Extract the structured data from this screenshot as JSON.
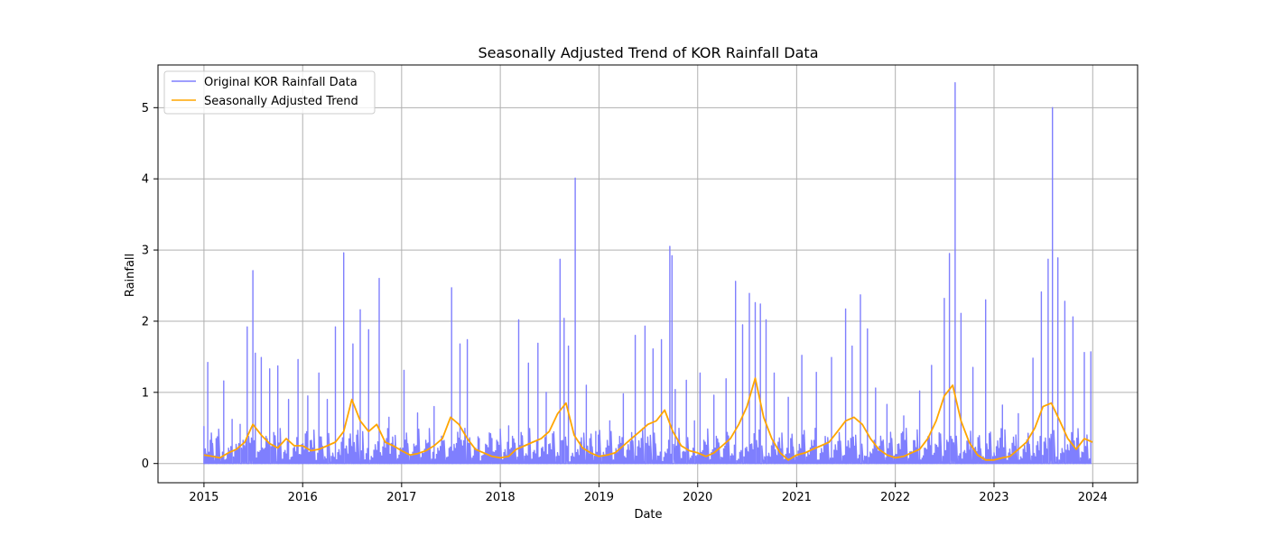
{
  "chart_data": {
    "type": "line",
    "title": "Seasonally Adjusted Trend of KOR Rainfall Data",
    "xlabel": "Date",
    "ylabel": "Rainfall",
    "xlim": [
      "2014-07-15",
      "2024-06-15"
    ],
    "ylim": [
      -0.27,
      5.6
    ],
    "grid": true,
    "legend_position": "top-left",
    "x_ticks": [
      "2015",
      "2016",
      "2017",
      "2018",
      "2019",
      "2020",
      "2021",
      "2022",
      "2023",
      "2024"
    ],
    "y_ticks": [
      0,
      1,
      2,
      3,
      4,
      5
    ],
    "colors": {
      "original": "#7f7ffe",
      "trend": "#ffa500",
      "grid": "#b0b0b0"
    },
    "series": [
      {
        "name": "Original KOR Rainfall Data",
        "x": [
          "2015-01-01",
          "2015-01-15",
          "2015-02-15",
          "2015-03-15",
          "2015-04-15",
          "2015-05-15",
          "2015-06-10",
          "2015-07-01",
          "2015-07-10",
          "2015-08-01",
          "2015-09-01",
          "2015-10-01",
          "2015-11-10",
          "2015-12-15",
          "2016-01-20",
          "2016-03-01",
          "2016-04-01",
          "2016-05-01",
          "2016-06-01",
          "2016-07-05",
          "2016-08-01",
          "2016-09-01",
          "2016-10-10",
          "2016-11-15",
          "2017-01-10",
          "2017-03-01",
          "2017-05-01",
          "2017-07-05",
          "2017-08-05",
          "2017-09-01",
          "2017-10-15",
          "2017-12-01",
          "2018-02-01",
          "2018-03-10",
          "2018-04-15",
          "2018-05-20",
          "2018-06-20",
          "2018-08-10",
          "2018-08-25",
          "2018-09-10",
          "2018-10-05",
          "2018-11-15",
          "2018-12-20",
          "2019-02-10",
          "2019-04-01",
          "2019-05-15",
          "2019-06-20",
          "2019-07-20",
          "2019-08-20",
          "2019-09-20",
          "2019-09-28",
          "2019-10-10",
          "2019-11-20",
          "2019-12-20",
          "2020-01-10",
          "2020-03-01",
          "2020-04-15",
          "2020-05-20",
          "2020-06-15",
          "2020-07-10",
          "2020-08-01",
          "2020-08-20",
          "2020-09-10",
          "2020-10-10",
          "2020-12-01",
          "2021-01-20",
          "2021-03-15",
          "2021-05-10",
          "2021-07-01",
          "2021-07-25",
          "2021-08-25",
          "2021-09-20",
          "2021-10-20",
          "2021-12-01",
          "2022-02-01",
          "2022-04-01",
          "2022-05-15",
          "2022-07-01",
          "2022-07-20",
          "2022-08-10",
          "2022-09-01",
          "2022-10-15",
          "2022-12-01",
          "2023-02-01",
          "2023-04-01",
          "2023-05-25",
          "2023-06-25",
          "2023-07-20",
          "2023-08-05",
          "2023-08-25",
          "2023-09-20",
          "2023-10-20",
          "2023-12-01",
          "2023-12-25"
        ],
        "values": [
          0.52,
          1.42,
          0.35,
          1.16,
          0.62,
          0.55,
          1.92,
          2.71,
          1.55,
          1.49,
          1.33,
          1.37,
          0.9,
          1.46,
          0.95,
          1.27,
          0.9,
          1.92,
          2.96,
          1.68,
          2.16,
          1.88,
          2.6,
          0.65,
          1.31,
          0.71,
          0.8,
          2.47,
          1.68,
          1.74,
          0.35,
          0.35,
          0.53,
          2.02,
          1.41,
          1.69,
          1.0,
          2.87,
          2.04,
          1.65,
          4.01,
          1.1,
          0.45,
          0.6,
          0.98,
          1.8,
          1.93,
          1.61,
          1.74,
          3.05,
          2.92,
          1.04,
          1.17,
          0.6,
          1.27,
          0.96,
          1.19,
          2.56,
          1.95,
          2.39,
          2.26,
          2.24,
          2.02,
          1.27,
          0.93,
          1.52,
          1.28,
          1.49,
          2.17,
          1.65,
          2.37,
          1.89,
          1.06,
          0.83,
          0.67,
          1.02,
          1.38,
          2.32,
          2.95,
          5.35,
          2.11,
          1.35,
          2.3,
          0.82,
          0.7,
          1.48,
          2.41,
          2.87,
          5.0,
          2.89,
          2.28,
          2.06,
          1.56,
          1.57
        ]
      },
      {
        "name": "Seasonally Adjusted Trend",
        "x": [
          "2015-01-01",
          "2015-02-01",
          "2015-03-01",
          "2015-04-01",
          "2015-05-01",
          "2015-06-01",
          "2015-07-01",
          "2015-08-01",
          "2015-09-01",
          "2015-10-01",
          "2015-11-01",
          "2015-12-01",
          "2016-01-01",
          "2016-02-01",
          "2016-03-01",
          "2016-04-01",
          "2016-05-01",
          "2016-06-01",
          "2016-07-01",
          "2016-08-01",
          "2016-09-01",
          "2016-10-01",
          "2016-11-01",
          "2016-12-01",
          "2017-01-01",
          "2017-02-01",
          "2017-03-01",
          "2017-04-01",
          "2017-05-01",
          "2017-06-01",
          "2017-07-01",
          "2017-08-01",
          "2017-09-01",
          "2017-10-01",
          "2017-11-01",
          "2017-12-01",
          "2018-01-01",
          "2018-02-01",
          "2018-03-01",
          "2018-04-01",
          "2018-05-01",
          "2018-06-01",
          "2018-07-01",
          "2018-08-01",
          "2018-09-01",
          "2018-10-01",
          "2018-11-01",
          "2018-12-01",
          "2019-01-01",
          "2019-02-01",
          "2019-03-01",
          "2019-04-01",
          "2019-05-01",
          "2019-06-01",
          "2019-07-01",
          "2019-08-01",
          "2019-09-01",
          "2019-10-01",
          "2019-11-01",
          "2019-12-01",
          "2020-01-01",
          "2020-02-01",
          "2020-03-01",
          "2020-04-01",
          "2020-05-01",
          "2020-06-01",
          "2020-07-01",
          "2020-08-01",
          "2020-09-01",
          "2020-10-01",
          "2020-11-01",
          "2020-12-01",
          "2021-01-01",
          "2021-02-01",
          "2021-03-01",
          "2021-04-01",
          "2021-05-01",
          "2021-06-01",
          "2021-07-01",
          "2021-08-01",
          "2021-09-01",
          "2021-10-01",
          "2021-11-01",
          "2021-12-01",
          "2022-01-01",
          "2022-02-01",
          "2022-03-01",
          "2022-04-01",
          "2022-05-01",
          "2022-06-01",
          "2022-07-01",
          "2022-08-01",
          "2022-09-01",
          "2022-10-01",
          "2022-11-01",
          "2022-12-01",
          "2023-01-01",
          "2023-02-01",
          "2023-03-01",
          "2023-04-01",
          "2023-05-01",
          "2023-06-01",
          "2023-07-01",
          "2023-08-01",
          "2023-09-01",
          "2023-10-01",
          "2023-11-01",
          "2023-12-01",
          "2023-12-31"
        ],
        "values": [
          0.12,
          0.1,
          0.08,
          0.15,
          0.2,
          0.3,
          0.55,
          0.4,
          0.28,
          0.22,
          0.35,
          0.25,
          0.25,
          0.18,
          0.2,
          0.25,
          0.3,
          0.45,
          0.9,
          0.6,
          0.45,
          0.55,
          0.3,
          0.25,
          0.18,
          0.12,
          0.14,
          0.18,
          0.25,
          0.35,
          0.65,
          0.55,
          0.35,
          0.2,
          0.15,
          0.1,
          0.08,
          0.1,
          0.2,
          0.25,
          0.3,
          0.35,
          0.45,
          0.7,
          0.85,
          0.4,
          0.22,
          0.15,
          0.1,
          0.12,
          0.15,
          0.25,
          0.35,
          0.45,
          0.55,
          0.6,
          0.75,
          0.45,
          0.25,
          0.18,
          0.15,
          0.1,
          0.15,
          0.25,
          0.35,
          0.55,
          0.8,
          1.2,
          0.65,
          0.35,
          0.15,
          0.05,
          0.12,
          0.15,
          0.2,
          0.25,
          0.3,
          0.45,
          0.6,
          0.65,
          0.55,
          0.35,
          0.2,
          0.12,
          0.08,
          0.1,
          0.15,
          0.2,
          0.35,
          0.6,
          0.95,
          1.1,
          0.6,
          0.3,
          0.12,
          0.05,
          0.05,
          0.08,
          0.1,
          0.2,
          0.3,
          0.5,
          0.8,
          0.85,
          0.6,
          0.35,
          0.2,
          0.35,
          0.3
        ]
      }
    ]
  }
}
